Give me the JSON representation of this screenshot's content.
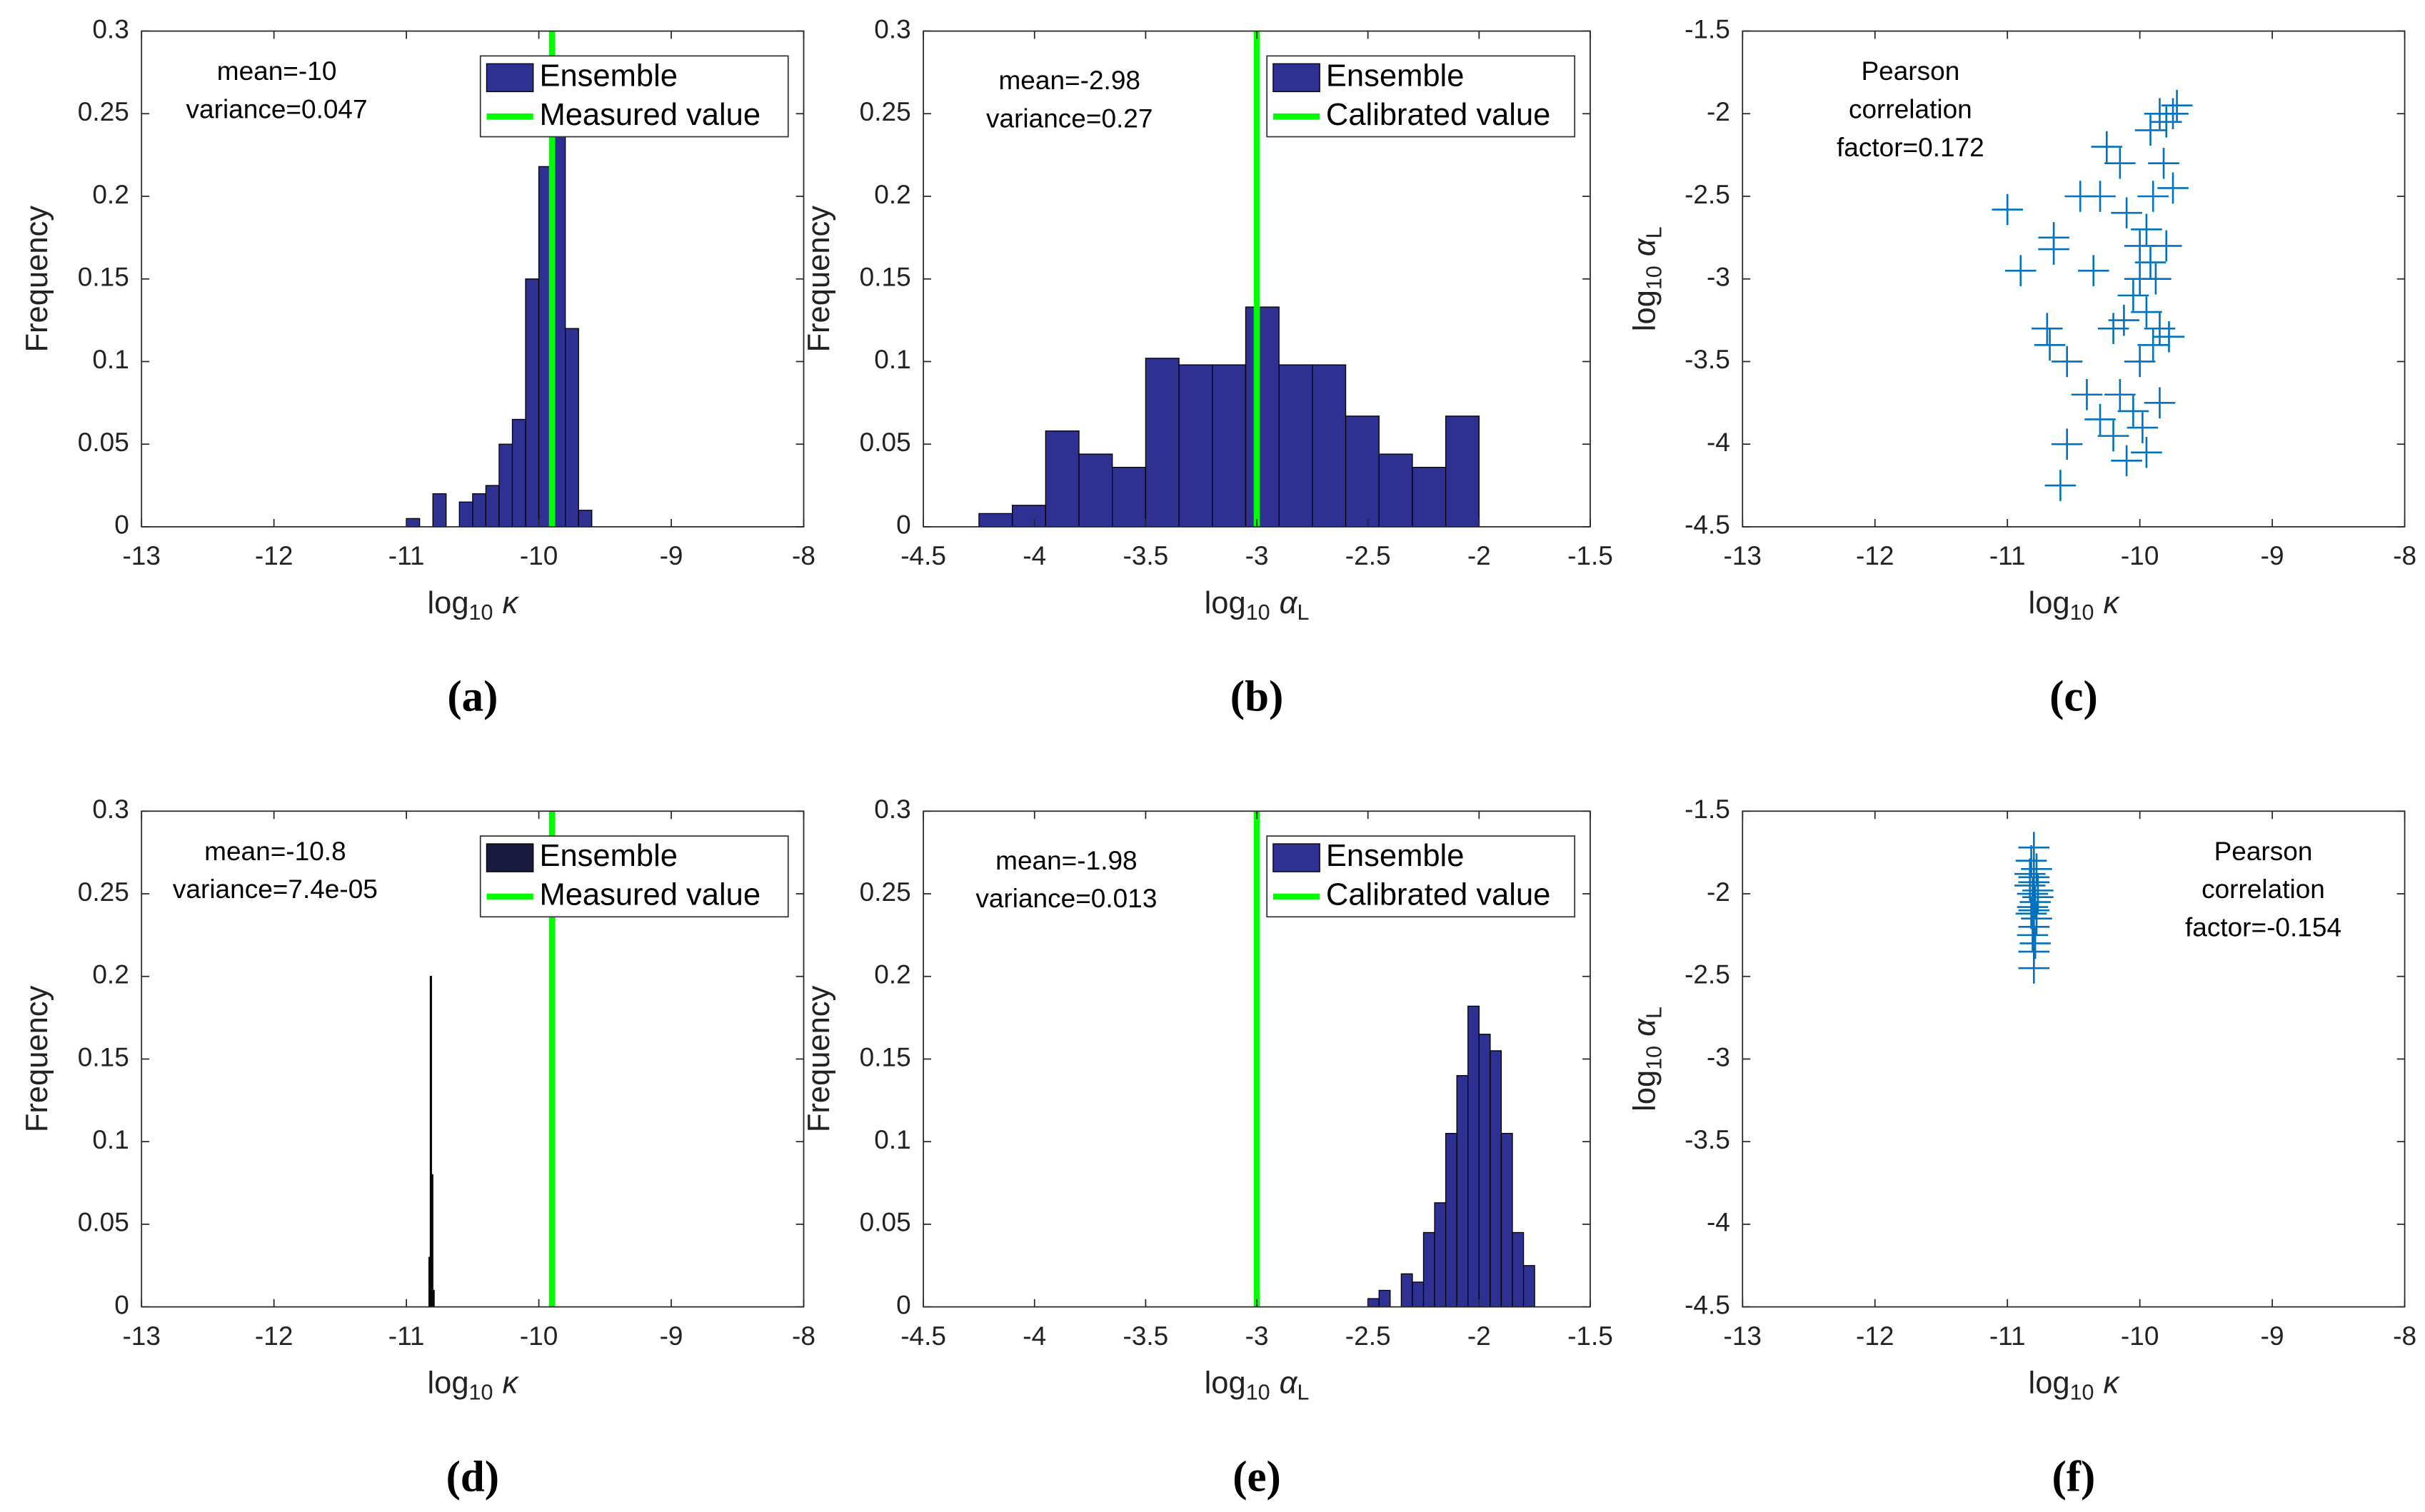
{
  "chart_data": [
    {
      "type": "histogram",
      "label": "(a)",
      "ylabel": "Frequency",
      "xlabel": {
        "text": "log",
        "sub": "10",
        "var": "κ"
      },
      "annotation": [
        "mean=-10",
        "variance=0.047"
      ],
      "series": [
        {
          "name": "Ensemble",
          "color": "#2e3192",
          "bins": [
            -11,
            -10.9,
            -10.8,
            -10.7,
            -10.6,
            -10.5,
            -10.4,
            -10.3,
            -10.2,
            -10.1,
            -10,
            -9.9,
            -9.8,
            -9.7,
            -9.6
          ],
          "values": [
            0.005,
            0,
            0.02,
            0,
            0.015,
            0.02,
            0.025,
            0.05,
            0.065,
            0.15,
            0.218,
            0.24,
            0.12,
            0.01
          ]
        }
      ],
      "vline": {
        "name": "Measured value",
        "color": "#00ff00",
        "x": -9.9
      },
      "legend": "upper right",
      "xlim": [
        -13,
        -8
      ],
      "xticks": [
        -13,
        -12,
        -11,
        -10,
        -9,
        -8
      ],
      "ylim": [
        0,
        0.3
      ],
      "yticks": [
        0,
        0.05,
        0.1,
        0.15,
        0.2,
        0.25,
        0.3
      ]
    },
    {
      "type": "histogram",
      "label": "(b)",
      "ylabel": "Frequency",
      "xlabel": {
        "text": "log",
        "sub": "10",
        "var": "α",
        "var_sub": "L"
      },
      "annotation": [
        "mean=-2.98",
        "variance=0.27"
      ],
      "series": [
        {
          "name": "Ensemble",
          "color": "#2e3192",
          "bins": [
            -4.25,
            -4.1,
            -3.95,
            -3.8,
            -3.65,
            -3.5,
            -3.35,
            -3.2,
            -3.05,
            -2.9,
            -2.75,
            -2.6,
            -2.45,
            -2.3,
            -2.15,
            -2
          ],
          "values": [
            0.008,
            0.013,
            0.058,
            0.044,
            0.036,
            0.102,
            0.098,
            0.098,
            0.133,
            0.098,
            0.098,
            0.067,
            0.044,
            0.036,
            0.067
          ]
        }
      ],
      "vline": {
        "name": "Calibrated value",
        "color": "#00ff00",
        "x": -3
      },
      "legend": "upper right",
      "xlim": [
        -4.5,
        -1.5
      ],
      "xticks": [
        -4.5,
        -4,
        -3.5,
        -3,
        -2.5,
        -2,
        -1.5
      ],
      "ylim": [
        0,
        0.3
      ],
      "yticks": [
        0,
        0.05,
        0.1,
        0.15,
        0.2,
        0.25,
        0.3
      ]
    },
    {
      "type": "scatter",
      "label": "(c)",
      "xlabel": {
        "text": "log",
        "sub": "10",
        "var": "κ"
      },
      "ylabel": {
        "text": "log",
        "sub": "10",
        "var": "α",
        "var_sub": "L"
      },
      "annotation": [
        "Pearson",
        "correlation",
        "factor=0.172"
      ],
      "color": "#0072bd",
      "x": [
        -11.0,
        -10.9,
        -10.65,
        -10.65,
        -10.7,
        -10.68,
        -10.55,
        -10.55,
        -10.45,
        -10.35,
        -10.3,
        -10.25,
        -10.2,
        -10.15,
        -10.15,
        -10.1,
        -10.1,
        -10.05,
        -10.0,
        -10.0,
        -10.0,
        -9.98,
        -9.95,
        -9.95,
        -9.92,
        -9.9,
        -9.9,
        -9.88,
        -9.85,
        -9.85,
        -9.85,
        -9.82,
        -9.8,
        -9.8,
        -9.78,
        -9.75,
        -9.72,
        -9.75,
        -10.4,
        -10.3,
        -10.6,
        -10.2,
        -9.95,
        -10.05,
        -9.92,
        -10.12
      ],
      "y": [
        -2.58,
        -2.95,
        -2.75,
        -2.82,
        -3.3,
        -3.4,
        -3.5,
        -4.0,
        -2.5,
        -2.95,
        -2.5,
        -2.2,
        -3.3,
        -3.7,
        -2.3,
        -2.6,
        -4.1,
        -3.8,
        -3.0,
        -2.8,
        -3.5,
        -3.9,
        -2.7,
        -3.2,
        -2.1,
        -3.4,
        -2.5,
        -3.0,
        -2.0,
        -3.3,
        -3.75,
        -2.3,
        -2.8,
        -2.05,
        -3.35,
        -2.0,
        -1.95,
        -2.45,
        -3.7,
        -3.85,
        -4.25,
        -3.95,
        -4.05,
        -3.1,
        -2.9,
        -3.25
      ],
      "xlim": [
        -13,
        -8
      ],
      "xticks": [
        -13,
        -12,
        -11,
        -10,
        -9,
        -8
      ],
      "ylim": [
        -4.5,
        -1.5
      ],
      "yticks": [
        -4.5,
        -4,
        -3.5,
        -3,
        -2.5,
        -2,
        -1.5
      ]
    },
    {
      "type": "histogram",
      "label": "(d)",
      "ylabel": "Frequency",
      "xlabel": {
        "text": "log",
        "sub": "10",
        "var": "κ"
      },
      "annotation": [
        "mean=-10.8",
        "variance=7.4e-05"
      ],
      "series": [
        {
          "name": "Ensemble",
          "color": "#1a1a40",
          "bins": [
            -10.83,
            -10.82,
            -10.81,
            -10.8,
            -10.79
          ],
          "values": [
            0.03,
            0.2,
            0.08,
            0.01
          ]
        }
      ],
      "vline": {
        "name": "Measured value",
        "color": "#00ff00",
        "x": -9.9
      },
      "legend": "upper right",
      "xlim": [
        -13,
        -8
      ],
      "xticks": [
        -13,
        -12,
        -11,
        -10,
        -9,
        -8
      ],
      "ylim": [
        0,
        0.3
      ],
      "yticks": [
        0,
        0.05,
        0.1,
        0.15,
        0.2,
        0.25,
        0.3
      ]
    },
    {
      "type": "histogram",
      "label": "(e)",
      "ylabel": "Frequency",
      "xlabel": {
        "text": "log",
        "sub": "10",
        "var": "α",
        "var_sub": "L"
      },
      "annotation": [
        "mean=-1.98",
        "variance=0.013"
      ],
      "series": [
        {
          "name": "Ensemble",
          "color": "#2e3192",
          "bins": [
            -2.5,
            -2.45,
            -2.4,
            -2.35,
            -2.3,
            -2.25,
            -2.2,
            -2.15,
            -2.1,
            -2.05,
            -2,
            -1.95,
            -1.9,
            -1.85,
            -1.8,
            -1.75
          ],
          "values": [
            0.005,
            0.01,
            0,
            0.02,
            0.015,
            0.045,
            0.063,
            0.105,
            0.14,
            0.182,
            0.165,
            0.155,
            0.105,
            0.045,
            0.025
          ]
        }
      ],
      "vline": {
        "name": "Calibrated value",
        "color": "#00ff00",
        "x": -3
      },
      "legend": "upper right",
      "xlim": [
        -4.5,
        -1.5
      ],
      "xticks": [
        -4.5,
        -4,
        -3.5,
        -3,
        -2.5,
        -2,
        -1.5
      ],
      "ylim": [
        0,
        0.3
      ],
      "yticks": [
        0,
        0.05,
        0.1,
        0.15,
        0.2,
        0.25,
        0.3
      ]
    },
    {
      "type": "scatter",
      "label": "(f)",
      "xlabel": {
        "text": "log",
        "sub": "10",
        "var": "κ"
      },
      "ylabel": {
        "text": "log",
        "sub": "10",
        "var": "α",
        "var_sub": "L"
      },
      "annotation": [
        "Pearson",
        "correlation",
        "factor=-0.154"
      ],
      "color": "#0072bd",
      "x": [
        -10.8,
        -10.82,
        -10.78,
        -10.8,
        -10.83,
        -10.77,
        -10.81,
        -10.79,
        -10.8,
        -10.82,
        -10.78,
        -10.8,
        -10.81,
        -10.79,
        -10.8,
        -10.83,
        -10.77,
        -10.8,
        -10.8,
        -10.81
      ],
      "y": [
        -1.72,
        -1.8,
        -1.85,
        -1.9,
        -1.95,
        -1.98,
        -2.0,
        -2.05,
        -2.1,
        -2.12,
        -2.15,
        -2.2,
        -2.25,
        -2.3,
        -2.35,
        -1.88,
        -2.02,
        -2.45,
        -1.93,
        -2.08
      ],
      "xlim": [
        -13,
        -8
      ],
      "xticks": [
        -13,
        -12,
        -11,
        -10,
        -9,
        -8
      ],
      "ylim": [
        -4.5,
        -1.5
      ],
      "yticks": [
        -4.5,
        -4,
        -3.5,
        -3,
        -2.5,
        -2,
        -1.5
      ]
    }
  ]
}
